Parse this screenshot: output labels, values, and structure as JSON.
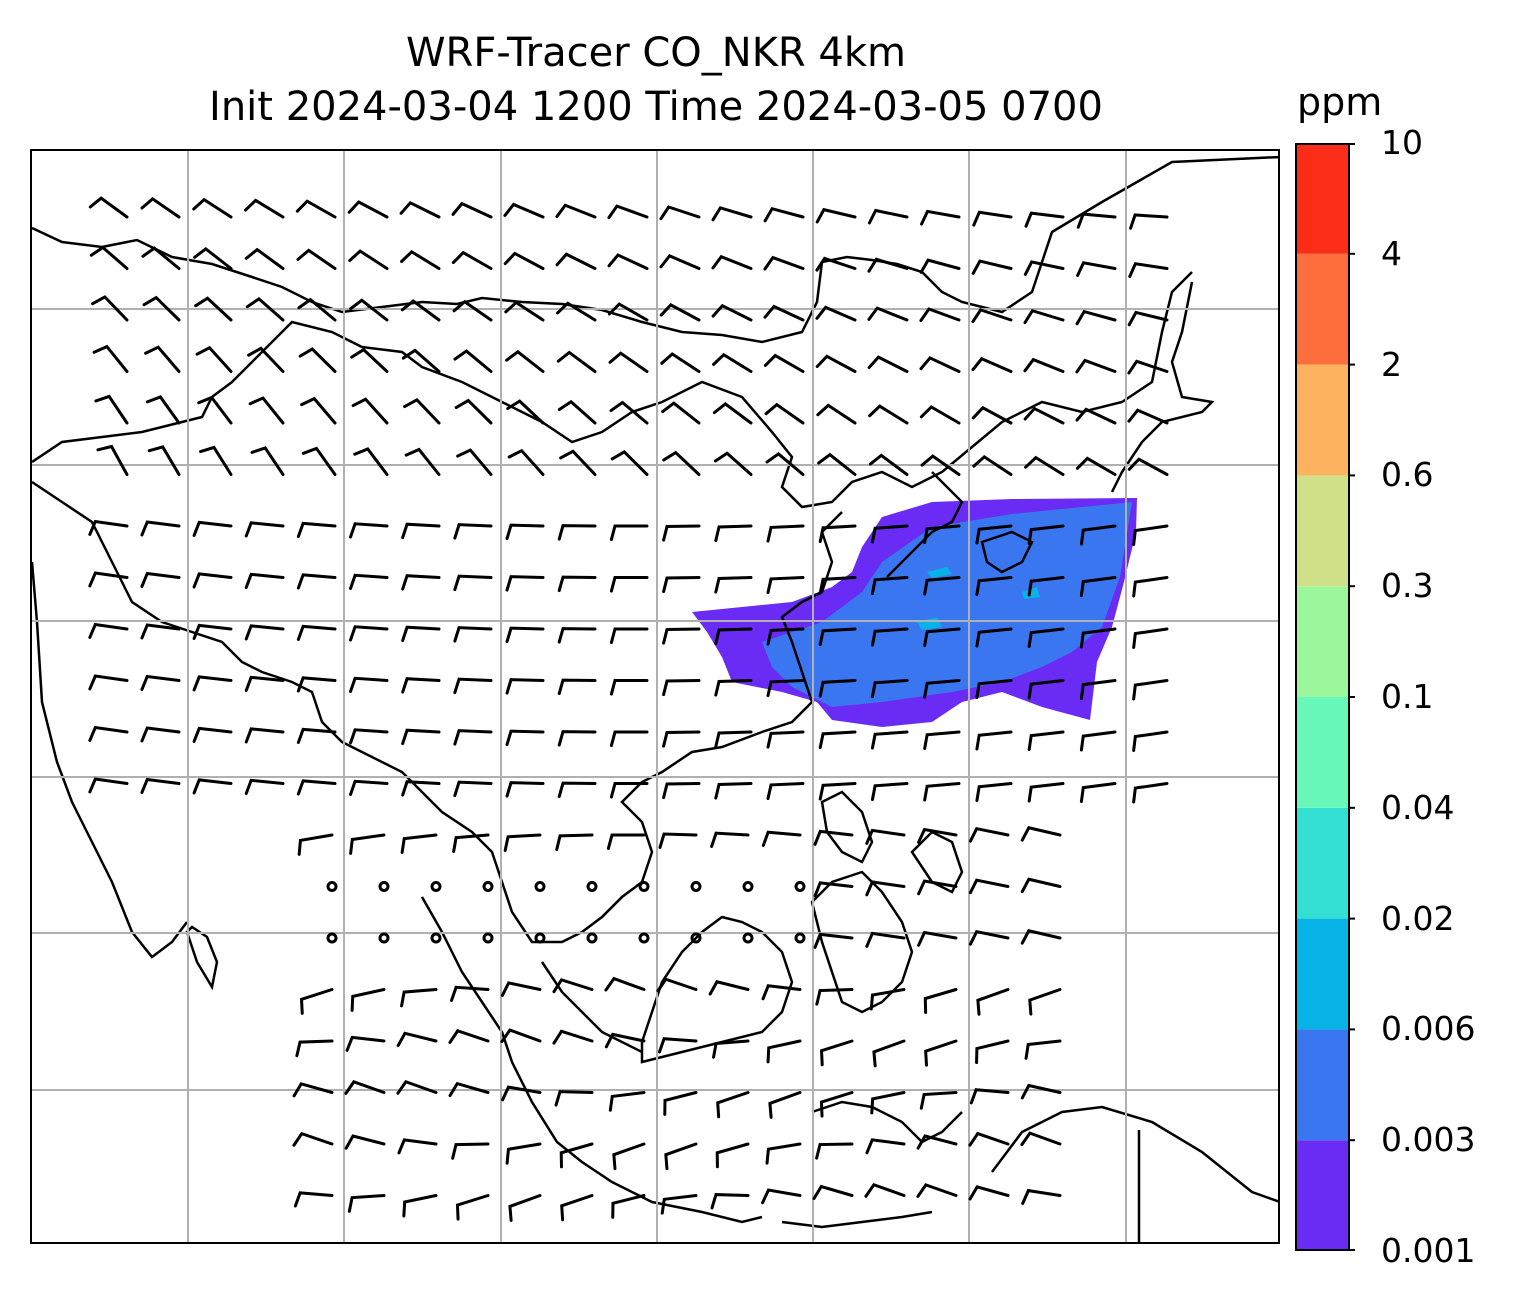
{
  "title": {
    "line1": "WRF-Tracer CO_NKR 4km",
    "line2": "Init 2024-03-04 1200 Time 2024-03-05 0700"
  },
  "colorbar": {
    "unit": "ppm",
    "tick_labels": [
      "0.001",
      "0.003",
      "0.006",
      "0.02",
      "0.04",
      "0.1",
      "0.3",
      "0.6",
      "2",
      "4",
      "10"
    ],
    "colors": [
      "#6a2cf5",
      "#3a76f0",
      "#07b2e7",
      "#33dfd2",
      "#66f7b9",
      "#9cf79c",
      "#cfe089",
      "#fdb25f",
      "#fe6e3c",
      "#fb2c18"
    ]
  },
  "map": {
    "gridlines": "on",
    "coastlines": "on",
    "wind_barbs": "on",
    "tracer_colors": [
      "#6a2cf5",
      "#3a76f0",
      "#07b2e7"
    ]
  }
}
